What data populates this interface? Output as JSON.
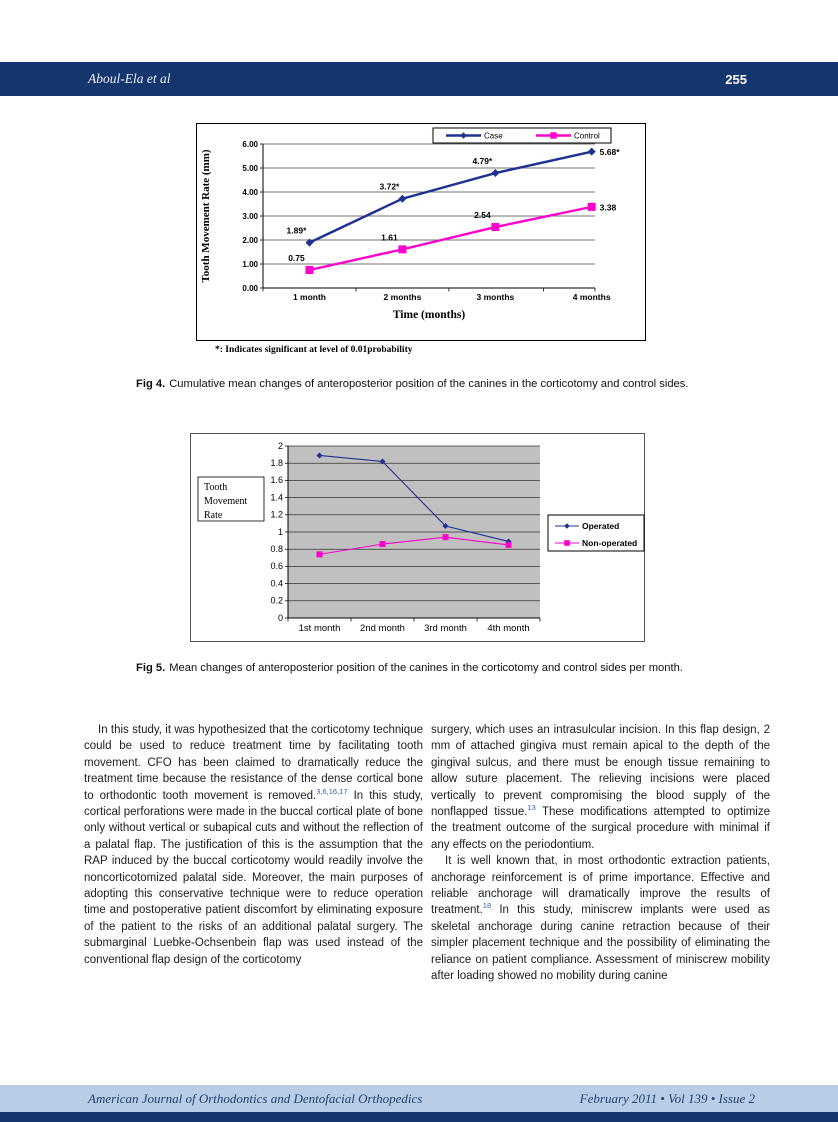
{
  "header": {
    "author": "Aboul-Ela et al",
    "page_number": "255"
  },
  "figure4": {
    "caption_label": "Fig 4.",
    "caption_text": "Cumulative mean changes of anteroposterior position of the canines in the corticotomy and control sides."
  },
  "figure5": {
    "caption_label": "Fig 5.",
    "caption_text": "Mean changes of anteroposterior position of the canines in the corticotomy and control sides per month."
  },
  "chart_data": [
    {
      "type": "line",
      "figure": "Fig 4",
      "title": "",
      "categories": [
        "1 month",
        "2 months",
        "3 months",
        "4 months"
      ],
      "series": [
        {
          "name": "Case",
          "values": [
            1.89,
            3.72,
            4.79,
            5.68
          ],
          "point_labels": [
            "1.89*",
            "3.72*",
            "4.79*",
            "5.68*"
          ],
          "color": "#1f3191",
          "marker": "diamond"
        },
        {
          "name": "Control",
          "values": [
            0.75,
            1.61,
            2.54,
            3.38
          ],
          "point_labels": [
            "0.75",
            "1.61",
            "2.54",
            "3.38"
          ],
          "color": "#ff00cc",
          "marker": "square"
        }
      ],
      "xlabel": "Time (months)",
      "ylabel": "Tooth Movement Rate (mm)",
      "ylim": [
        0,
        6
      ],
      "ytick_labels": [
        "0.00",
        "1.00",
        "2.00",
        "3.00",
        "4.00",
        "5.00",
        "6.00"
      ],
      "grid": true,
      "legend_position": "top-inside",
      "footnote": "*: Indicates significant at level of 0.01probability"
    },
    {
      "type": "line",
      "figure": "Fig 5",
      "title": "",
      "categories": [
        "1st month",
        "2nd month",
        "3rd month",
        "4th month"
      ],
      "series": [
        {
          "name": "Operated",
          "values": [
            1.89,
            1.82,
            1.07,
            0.89
          ],
          "color": "#1f3191",
          "marker": "diamond"
        },
        {
          "name": "Non-operated",
          "values": [
            0.74,
            0.86,
            0.94,
            0.85
          ],
          "color": "#ff00cc",
          "marker": "square"
        }
      ],
      "xlabel": "",
      "ylabel": "Tooth Movement Rate",
      "ylabel_box_lines": [
        "Tooth",
        "Movement",
        "Rate"
      ],
      "ylim": [
        0,
        2
      ],
      "ytick_labels": [
        "0",
        "0.2",
        "0.4",
        "0.6",
        "0.8",
        "1",
        "1.2",
        "1.4",
        "1.6",
        "1.8",
        "2"
      ],
      "grid": true,
      "plot_background": "#c0c0c0",
      "legend_position": "right-outside"
    }
  ],
  "body": {
    "left_column": [
      {
        "indent": true,
        "segments": [
          {
            "t": "In this study, it was hypothesized that the corticotomy technique could be used to reduce treatment time by facilitating tooth movement. CFO has been claimed to dramatically reduce the treatment time because the resistance of the dense cortical bone to orthodontic tooth movement is removed."
          },
          {
            "t": "3,6,16,17",
            "sup": true
          },
          {
            "t": " In this study, cortical perforations were made in the buccal cortical plate of bone only without vertical or subapical cuts and without the reflection of a palatal flap. The justification of this is the assumption that the RAP induced by the buccal corticotomy would readily involve the noncorticotomized palatal side. Moreover, the main purposes of adopting this conservative technique were to reduce operation time and postoperative patient discomfort by eliminating exposure of the patient to the risks of an additional palatal surgery. The submarginal Luebke-Ochsenbein flap was used instead of the conventional flap design of the corticotomy"
          }
        ]
      }
    ],
    "right_column": [
      {
        "indent": false,
        "segments": [
          {
            "t": "surgery, which uses an intrasulcular incision. In this flap design, 2 mm of attached gingiva must remain apical to the depth of the gingival sulcus, and there must be enough tissue remaining to allow suture placement. The relieving incisions were placed vertically to prevent compromising the blood supply of the nonflapped tissue."
          },
          {
            "t": "13",
            "sup": true
          },
          {
            "t": " These modifications attempted to optimize the treatment outcome of the surgical procedure with minimal if any effects on the periodontium."
          }
        ]
      },
      {
        "indent": true,
        "segments": [
          {
            "t": "It is well known that, in most orthodontic extraction patients, anchorage reinforcement is of prime importance. Effective and reliable anchorage will dramatically improve the results of treatment."
          },
          {
            "t": "18",
            "sup": true
          },
          {
            "t": " In this study, miniscrew implants were used as skeletal anchorage during canine retraction because of their simpler placement technique and the possibility of eliminating the reliance on patient compliance. Assessment of miniscrew mobility after loading showed no mobility during canine"
          }
        ]
      }
    ]
  },
  "footer": {
    "journal": "American Journal of Orthodontics and Dentofacial Orthopedics",
    "issue": "February 2011 • Vol 139 • Issue 2"
  }
}
